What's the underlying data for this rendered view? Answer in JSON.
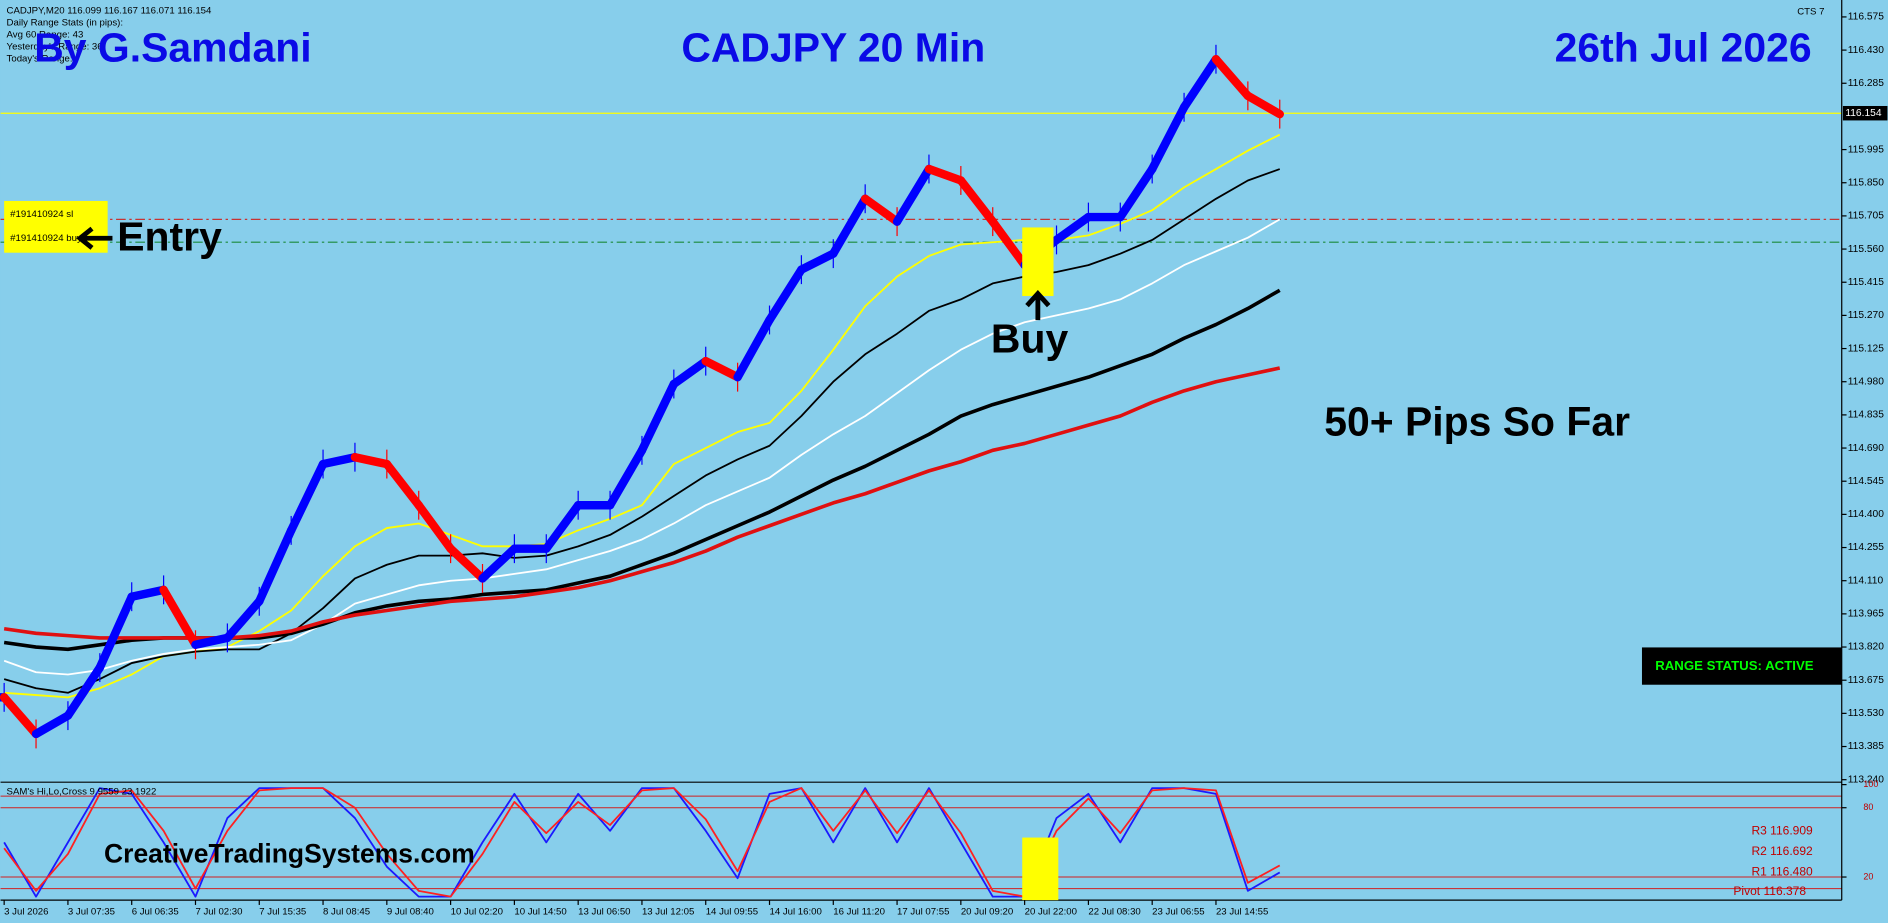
{
  "header": {
    "symbol_line": "CADJPY,M20  116.099 116.167 116.071 116.154",
    "stats_title": "Daily Range Stats (in pips):",
    "stats_lines": [
      "Avg 60 Range: 43",
      "Yesterday's Range: 36",
      "Today's Range:"
    ],
    "version": "CTS 7"
  },
  "annotations": {
    "author": "By G.Samdani",
    "title": "CADJPY 20 Min",
    "date": "26th Jul 2026",
    "entry": "Entry",
    "buy": "Buy",
    "result": "50+ Pips So Far",
    "range_status": "RANGE STATUS: ACTIVE",
    "website": "CreativeTradingSystems.com",
    "orders": [
      "#191410924 sl",
      "#191410924 buy"
    ],
    "pivots": [
      "R3 116.909",
      "R2 116.692",
      "R1 116.480",
      "Pivot 116.378"
    ]
  },
  "chart_data": [
    {
      "type": "line",
      "categories": [
        "3 Jul 2026",
        null,
        "3 Jul 07:35",
        null,
        "6 Jul 06:35",
        null,
        "7 Jul 02:30",
        null,
        "7 Jul 15:35",
        null,
        "8 Jul 08:45",
        null,
        "9 Jul 08:40",
        null,
        "10 Jul 02:20",
        null,
        "10 Jul 14:50",
        null,
        "13 Jul 06:50",
        null,
        "13 Jul 12:05",
        null,
        "14 Jul 09:55",
        null,
        "14 Jul 16:00",
        null,
        "16 Jul 11:20",
        null,
        "17 Jul 07:55",
        null,
        "20 Jul 09:20",
        null,
        "20 Jul 22:00",
        null,
        "22 Jul 08:30",
        null,
        "23 Jul 06:55",
        null,
        "23 Jul 14:55",
        null,
        null
      ],
      "values": [
        113.6,
        113.44,
        113.52,
        113.73,
        114.04,
        114.07,
        113.83,
        113.86,
        114.02,
        114.33,
        114.62,
        114.65,
        114.62,
        114.44,
        114.25,
        114.12,
        114.25,
        114.25,
        114.44,
        114.44,
        114.68,
        114.97,
        115.07,
        115.0,
        115.25,
        115.47,
        115.54,
        115.78,
        115.68,
        115.91,
        115.86,
        115.68,
        115.49,
        115.6,
        115.7,
        115.7,
        115.91,
        116.18,
        116.39,
        116.23,
        116.15
      ],
      "up_color": "#0000ff",
      "down_color": "#ff0000",
      "series": [
        {
          "color": "#ffff00",
          "line_width": 1.5,
          "values": [
            113.62,
            113.61,
            113.6,
            113.64,
            113.7,
            113.78,
            113.8,
            113.82,
            113.89,
            113.98,
            114.13,
            114.26,
            114.34,
            114.36,
            114.31,
            114.26,
            114.26,
            114.27,
            114.33,
            114.38,
            114.44,
            114.62,
            114.69,
            114.76,
            114.8,
            114.94,
            115.12,
            115.31,
            115.44,
            115.53,
            115.58,
            115.59,
            115.6,
            115.6,
            115.62,
            115.67,
            115.73,
            115.83,
            115.91,
            115.99,
            116.06
          ]
        },
        {
          "color": "#000000",
          "line_width": 1.5,
          "values": [
            113.68,
            113.64,
            113.62,
            113.68,
            113.75,
            113.78,
            113.8,
            113.81,
            113.81,
            113.88,
            113.99,
            114.12,
            114.18,
            114.22,
            114.22,
            114.23,
            114.21,
            114.22,
            114.26,
            114.31,
            114.39,
            114.48,
            114.57,
            114.64,
            114.7,
            114.83,
            114.98,
            115.1,
            115.19,
            115.29,
            115.34,
            115.41,
            115.44,
            115.46,
            115.49,
            115.54,
            115.6,
            115.69,
            115.78,
            115.86,
            115.91
          ]
        },
        {
          "color": "#ffffff",
          "line_width": 1.5,
          "values": [
            113.76,
            113.71,
            113.7,
            113.72,
            113.76,
            113.79,
            113.81,
            113.82,
            113.83,
            113.85,
            113.92,
            114.01,
            114.05,
            114.09,
            114.11,
            114.12,
            114.14,
            114.16,
            114.2,
            114.24,
            114.29,
            114.36,
            114.44,
            114.5,
            114.56,
            114.66,
            114.75,
            114.83,
            114.93,
            115.03,
            115.12,
            115.19,
            115.24,
            115.27,
            115.3,
            115.34,
            115.41,
            115.49,
            115.55,
            115.61,
            115.69
          ]
        },
        {
          "color": "#000000",
          "line_width": 3,
          "values": [
            113.84,
            113.82,
            113.81,
            113.83,
            113.85,
            113.86,
            113.86,
            113.86,
            113.86,
            113.88,
            113.92,
            113.97,
            114.0,
            114.02,
            114.03,
            114.05,
            114.06,
            114.07,
            114.1,
            114.13,
            114.18,
            114.23,
            114.29,
            114.35,
            114.41,
            114.48,
            114.55,
            114.61,
            114.68,
            114.75,
            114.83,
            114.88,
            114.92,
            114.96,
            115.0,
            115.05,
            115.1,
            115.17,
            115.23,
            115.3,
            115.38
          ]
        },
        {
          "color": "#e01010",
          "line_width": 3,
          "values": [
            113.9,
            113.88,
            113.87,
            113.86,
            113.86,
            113.86,
            113.86,
            113.86,
            113.87,
            113.89,
            113.93,
            113.96,
            113.98,
            114.0,
            114.02,
            114.03,
            114.04,
            114.06,
            114.08,
            114.11,
            114.15,
            114.19,
            114.24,
            114.3,
            114.35,
            114.4,
            114.45,
            114.49,
            114.54,
            114.59,
            114.63,
            114.68,
            114.71,
            114.75,
            114.79,
            114.83,
            114.89,
            114.94,
            114.98,
            115.01,
            115.04
          ]
        }
      ],
      "current_price": {
        "value": 116.154,
        "color": "#ffff00"
      },
      "levels": [
        {
          "value": 115.69,
          "color": "#c83232"
        },
        {
          "value": 115.59,
          "color": "#1a8a3a"
        }
      ],
      "ylim": [
        113.229,
        116.649
      ],
      "yticks": [
        116.575,
        {
          "value": 116.43,
          "label": "116.430"
        },
        116.285,
        115.995,
        {
          "value": 115.85,
          "label": "115.850"
        },
        115.705,
        {
          "value": 115.56,
          "label": "115.560"
        },
        115.415,
        {
          "value": 115.27,
          "label": "115.270"
        },
        115.125,
        {
          "value": 114.98,
          "label": "114.980"
        },
        114.835,
        {
          "value": 114.69,
          "label": "114.690"
        },
        114.545,
        {
          "value": 114.4,
          "label": "114.400"
        },
        114.255,
        {
          "value": 114.11,
          "label": "114.110"
        },
        113.965,
        {
          "value": 113.82,
          "label": "113.820"
        },
        113.675,
        {
          "value": 113.53,
          "label": "113.530"
        },
        113.385,
        {
          "value": 113.24,
          "label": "113.240"
        }
      ],
      "grid": false
    },
    {
      "type": "line",
      "title": "SAM's Hi,Lo,Cross 9.9559 23.1922",
      "series": [
        {
          "color": "#1a1aff",
          "values": [
            50,
            3,
            50,
            97,
            92,
            50,
            3,
            71,
            97,
            97,
            97,
            71,
            29,
            3,
            3,
            50,
            92,
            50,
            92,
            60,
            97,
            97,
            60,
            19,
            92,
            97,
            50,
            97,
            50,
            97,
            50,
            3,
            3,
            71,
            92,
            50,
            97,
            97,
            92,
            8,
            24
          ]
        },
        {
          "color": "#ff2020",
          "values": [
            45,
            8,
            40,
            92,
            95,
            60,
            10,
            60,
            95,
            97,
            97,
            80,
            40,
            8,
            3,
            40,
            85,
            58,
            85,
            65,
            95,
            97,
            70,
            25,
            85,
            97,
            60,
            95,
            58,
            95,
            58,
            8,
            3,
            60,
            88,
            58,
            95,
            97,
            95,
            15,
            30
          ]
        }
      ],
      "levels": [
        90,
        80,
        20,
        10
      ],
      "level_color": "#d02020",
      "ylim": [
        0,
        100
      ],
      "yticks": [
        100,
        80,
        20
      ]
    }
  ]
}
